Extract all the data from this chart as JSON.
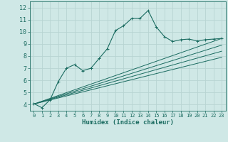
{
  "xlabel": "Humidex (Indice chaleur)",
  "bg_color": "#cfe8e6",
  "grid_color": "#b8d4d2",
  "line_color": "#1a6b60",
  "xlim": [
    -0.5,
    23.5
  ],
  "ylim": [
    3.5,
    12.5
  ],
  "yticks": [
    4,
    5,
    6,
    7,
    8,
    9,
    10,
    11,
    12
  ],
  "xticks": [
    0,
    1,
    2,
    3,
    4,
    5,
    6,
    7,
    8,
    9,
    10,
    11,
    12,
    13,
    14,
    15,
    16,
    17,
    18,
    19,
    20,
    21,
    22,
    23
  ],
  "main_x": [
    0,
    1,
    2,
    3,
    4,
    5,
    6,
    7,
    8,
    9,
    10,
    11,
    12,
    13,
    14,
    15,
    16,
    17,
    18,
    19,
    20,
    21,
    22,
    23
  ],
  "main_y": [
    4.1,
    3.75,
    4.4,
    5.9,
    7.0,
    7.3,
    6.8,
    7.0,
    7.8,
    8.6,
    10.1,
    10.5,
    11.1,
    11.1,
    11.75,
    10.4,
    9.6,
    9.2,
    9.35,
    9.4,
    9.25,
    9.35,
    9.4,
    9.45
  ],
  "trend_lines": [
    {
      "x": [
        0,
        23
      ],
      "y": [
        4.05,
        9.45
      ]
    },
    {
      "x": [
        0,
        23
      ],
      "y": [
        4.05,
        8.9
      ]
    },
    {
      "x": [
        0,
        23
      ],
      "y": [
        4.05,
        8.4
      ]
    },
    {
      "x": [
        0,
        23
      ],
      "y": [
        4.05,
        7.9
      ]
    }
  ]
}
